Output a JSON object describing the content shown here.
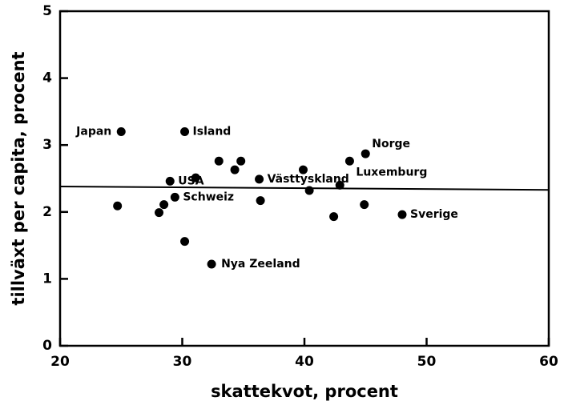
{
  "chart_data": {
    "type": "scatter",
    "xlabel": "skattekvot, procent",
    "ylabel": "tillväxt per capita, procent",
    "x": [
      25.0,
      30.2,
      33.0,
      34.3,
      34.8,
      29.0,
      31.1,
      36.3,
      39.9,
      40.4,
      42.9,
      43.7,
      45.0,
      29.4,
      24.7,
      28.5,
      28.1,
      36.4,
      42.4,
      44.9,
      48.0,
      30.2,
      32.4
    ],
    "values": [
      3.2,
      3.2,
      2.76,
      2.63,
      2.76,
      2.46,
      2.51,
      2.49,
      2.63,
      2.32,
      2.4,
      2.76,
      2.87,
      2.22,
      2.09,
      2.11,
      1.99,
      2.17,
      1.93,
      2.11,
      1.96,
      1.56,
      1.22
    ],
    "labels": [
      "Japan",
      "Island",
      null,
      null,
      null,
      "USA",
      null,
      "Västtyskland",
      null,
      null,
      null,
      "Luxemburg",
      "Norge",
      "Schweiz",
      null,
      null,
      null,
      null,
      null,
      null,
      "Sverige",
      null,
      "Nya Zeeland"
    ],
    "color": "#000000",
    "reference_line": {
      "x": [
        20,
        60
      ],
      "y": [
        2.38,
        2.33
      ]
    },
    "xlim": [
      20,
      60
    ],
    "xticks": [
      20,
      30,
      40,
      50,
      60
    ],
    "ylim": [
      0,
      5
    ],
    "yticks": [
      0,
      1,
      2,
      3,
      4,
      5
    ]
  }
}
